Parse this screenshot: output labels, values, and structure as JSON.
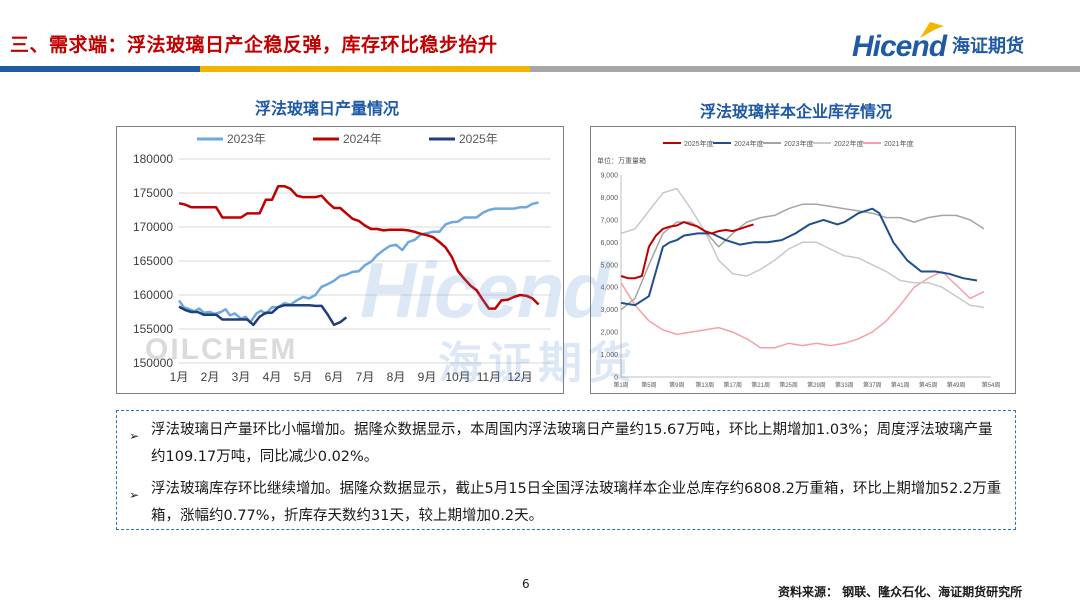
{
  "header": {
    "title": "三、需求端：浮法玻璃日产企稳反弹，库存环比稳步抬升"
  },
  "logo": {
    "brand": "Hicend",
    "cn": "海证期货"
  },
  "colors": {
    "brand_blue": "#1f5aa6",
    "title_red": "#c00000",
    "band_blue": "#1f5aa6",
    "band_yellow": "#f2b600",
    "band_gray": "#a6a6a6"
  },
  "chart_data": [
    {
      "type": "line",
      "title": "浮法玻璃日产量情况",
      "watermark": "OILCHEM",
      "x_ticks": [
        "1月",
        "2月",
        "3月",
        "4月",
        "5月",
        "6月",
        "7月",
        "8月",
        "9月",
        "10月",
        "11月",
        "12月"
      ],
      "ylim": [
        150000,
        180000
      ],
      "y_ticks": [
        150000,
        155000,
        160000,
        165000,
        170000,
        175000,
        180000
      ],
      "grid": true,
      "legend_position": "top",
      "series": [
        {
          "name": "2023年",
          "color": "#6fa8dc",
          "x": [
            0.0,
            0.15,
            0.35,
            0.5,
            0.65,
            0.8,
            1.0,
            1.15,
            1.35,
            1.5,
            1.65,
            1.8,
            2.0,
            2.15,
            2.3,
            2.5,
            2.65,
            2.8,
            3.0,
            3.2,
            3.4,
            3.6,
            3.8,
            4.0,
            4.2,
            4.4,
            4.6,
            4.8,
            5.0,
            5.2,
            5.4,
            5.6,
            5.8,
            6.0,
            6.2,
            6.4,
            6.6,
            6.8,
            7.0,
            7.2,
            7.4,
            7.6,
            7.8,
            8.0,
            8.2,
            8.4,
            8.6,
            8.8,
            9.0,
            9.2,
            9.4,
            9.6,
            9.8,
            10.0,
            10.2,
            10.4,
            10.6,
            10.8,
            11.0,
            11.2,
            11.4,
            11.6
          ],
          "y": [
            159200,
            158200,
            157900,
            157600,
            158000,
            157400,
            157500,
            157200,
            157500,
            157900,
            157000,
            157300,
            156500,
            156800,
            156000,
            157300,
            157700,
            157200,
            158200,
            158200,
            158800,
            158600,
            159200,
            159700,
            159500,
            160000,
            161200,
            161600,
            162100,
            162800,
            163000,
            163400,
            163500,
            164400,
            164900,
            165900,
            166600,
            167200,
            167400,
            166600,
            167800,
            168100,
            168900,
            169100,
            169300,
            169300,
            170400,
            170700,
            170800,
            171400,
            171400,
            171400,
            172100,
            172500,
            172700,
            172700,
            172700,
            172700,
            172900,
            172900,
            173400,
            173600
          ]
        },
        {
          "name": "2024年",
          "color": "#c00000",
          "x": [
            0.0,
            0.2,
            0.4,
            0.6,
            0.8,
            1.0,
            1.2,
            1.4,
            1.6,
            1.8,
            2.0,
            2.2,
            2.4,
            2.6,
            2.8,
            3.0,
            3.2,
            3.4,
            3.6,
            3.8,
            4.0,
            4.2,
            4.4,
            4.6,
            4.8,
            5.0,
            5.2,
            5.4,
            5.6,
            5.8,
            6.0,
            6.2,
            6.4,
            6.6,
            6.8,
            7.0,
            7.2,
            7.4,
            7.6,
            7.8,
            8.0,
            8.2,
            8.4,
            8.6,
            8.8,
            9.0,
            9.2,
            9.4,
            9.6,
            9.8,
            10.0,
            10.2,
            10.4,
            10.6,
            10.8,
            11.0,
            11.2,
            11.4,
            11.6
          ],
          "y": [
            173500,
            173300,
            172900,
            172900,
            172900,
            172900,
            172900,
            171400,
            171400,
            171400,
            171400,
            172000,
            172000,
            172000,
            174000,
            174000,
            176000,
            176000,
            175600,
            174600,
            174400,
            174400,
            174400,
            174600,
            173600,
            172800,
            172800,
            172000,
            171200,
            170900,
            170200,
            169700,
            169700,
            169500,
            169600,
            169600,
            169600,
            169500,
            169300,
            169000,
            168800,
            168500,
            167800,
            167000,
            165600,
            163500,
            162400,
            161400,
            160700,
            159300,
            158000,
            158000,
            159200,
            159300,
            159700,
            160000,
            159900,
            159500,
            158600
          ]
        },
        {
          "name": "2025年",
          "color": "#1f3f7a",
          "x": [
            0.0,
            0.2,
            0.4,
            0.6,
            0.8,
            1.0,
            1.2,
            1.4,
            1.6,
            1.8,
            2.0,
            2.2,
            2.4,
            2.6,
            2.8,
            3.0,
            3.2,
            3.4,
            3.6,
            3.8,
            4.0,
            4.2,
            4.4,
            4.6,
            4.8,
            5.0,
            5.2,
            5.4
          ],
          "y": [
            158300,
            157800,
            157500,
            157500,
            157100,
            157100,
            157100,
            156400,
            156400,
            156400,
            156400,
            156400,
            155600,
            156800,
            157400,
            157400,
            158200,
            158500,
            158500,
            158500,
            158500,
            158500,
            158400,
            158400,
            157100,
            155600,
            156000,
            156700
          ]
        }
      ]
    },
    {
      "type": "line",
      "title": "浮法玻璃样本企业库存情况",
      "unit_label": "单位：万重量箱",
      "ylim": [
        0,
        9000
      ],
      "y_ticks": [
        "0",
        "1,000",
        "2,000",
        "3,000",
        "4,000",
        "5,000",
        "6,000",
        "7,000",
        "8,000",
        "9,000"
      ],
      "x_ticks": [
        "第1周",
        "第5周",
        "第9周",
        "第13周",
        "第17周",
        "第21周",
        "第25周",
        "第29周",
        "第33周",
        "第37周",
        "第41周",
        "第45周",
        "第49周",
        "第54周"
      ],
      "grid": false,
      "legend_position": "top",
      "series": [
        {
          "name": "2025年度",
          "color": "#c00000",
          "x": [
            1,
            2,
            3,
            4,
            5,
            6,
            7,
            8,
            9,
            10,
            11,
            12,
            13,
            14,
            15,
            16,
            17,
            18,
            19,
            20
          ],
          "y": [
            4500,
            4400,
            4400,
            4500,
            5800,
            6300,
            6600,
            6700,
            6750,
            6900,
            6800,
            6700,
            6500,
            6400,
            6500,
            6550,
            6500,
            6600,
            6700,
            6800
          ]
        },
        {
          "name": "2024年度",
          "color": "#1f4e8c",
          "x": [
            1,
            3,
            5,
            6,
            7,
            8,
            9,
            10,
            12,
            14,
            16,
            18,
            20,
            22,
            24,
            26,
            28,
            30,
            32,
            33,
            35,
            37,
            38,
            40,
            42,
            44,
            46,
            48,
            50,
            52
          ],
          "y": [
            3300,
            3200,
            3600,
            4700,
            5800,
            6000,
            6100,
            6300,
            6400,
            6400,
            6100,
            5900,
            6000,
            6000,
            6100,
            6400,
            6800,
            7000,
            6800,
            6900,
            7300,
            7500,
            7300,
            6000,
            5200,
            4700,
            4700,
            4600,
            4400,
            4300
          ]
        },
        {
          "name": "2023年度",
          "color": "#a5a5a5",
          "x": [
            1,
            3,
            5,
            7,
            9,
            11,
            13,
            15,
            17,
            19,
            21,
            23,
            25,
            27,
            29,
            31,
            33,
            35,
            37,
            39,
            41,
            43,
            45,
            47,
            49,
            51,
            53
          ],
          "y": [
            3000,
            3500,
            5000,
            6400,
            6900,
            6900,
            6500,
            5800,
            6400,
            6900,
            7100,
            7200,
            7500,
            7700,
            7700,
            7600,
            7500,
            7400,
            7300,
            7100,
            7100,
            6900,
            7100,
            7200,
            7200,
            7000,
            6600
          ]
        },
        {
          "name": "2022年度",
          "color": "#c9c9c9",
          "x": [
            1,
            3,
            5,
            7,
            9,
            11,
            13,
            15,
            17,
            19,
            21,
            23,
            25,
            27,
            29,
            31,
            33,
            35,
            37,
            39,
            41,
            43,
            45,
            47,
            49,
            51,
            53
          ],
          "y": [
            6400,
            6600,
            7400,
            8200,
            8400,
            7500,
            6500,
            5200,
            4600,
            4500,
            4800,
            5200,
            5700,
            6000,
            6000,
            5700,
            5400,
            5300,
            5000,
            4700,
            4300,
            4200,
            4200,
            4000,
            3600,
            3200,
            3100
          ]
        },
        {
          "name": "2021年度",
          "color": "#f4a0a8",
          "x": [
            1,
            3,
            5,
            7,
            9,
            11,
            13,
            15,
            17,
            19,
            21,
            23,
            25,
            27,
            29,
            31,
            33,
            35,
            37,
            39,
            41,
            43,
            45,
            47,
            49,
            51,
            53
          ],
          "y": [
            4200,
            3200,
            2500,
            2100,
            1900,
            2000,
            2100,
            2200,
            2000,
            1700,
            1300,
            1300,
            1500,
            1400,
            1500,
            1400,
            1500,
            1700,
            2000,
            2500,
            3200,
            4000,
            4400,
            4700,
            4100,
            3500,
            3800
          ]
        }
      ]
    }
  ],
  "notes": [
    {
      "bullet": "➢",
      "text": "浮法玻璃日产量环比小幅增加。据隆众数据显示，本周国内浮法玻璃日产量约15.67万吨，环比上期增加1.03%；周度浮法玻璃产量约109.17万吨，同比减少0.02%。"
    },
    {
      "bullet": "➢",
      "text": "浮法玻璃库存环比继续增加。据隆众数据显示，截止5月15日全国浮法玻璃样本企业总库存约6808.2万重箱，环比上期增加52.2万重箱，涨幅约0.77%，折库存天数约31天，较上期增加0.2天。"
    }
  ],
  "footer": {
    "page": "6",
    "source": "资料来源：  钢联、隆众石化、海证期货研究所"
  },
  "watermark": {
    "brand": "Hicend",
    "cn": "海证期货"
  }
}
